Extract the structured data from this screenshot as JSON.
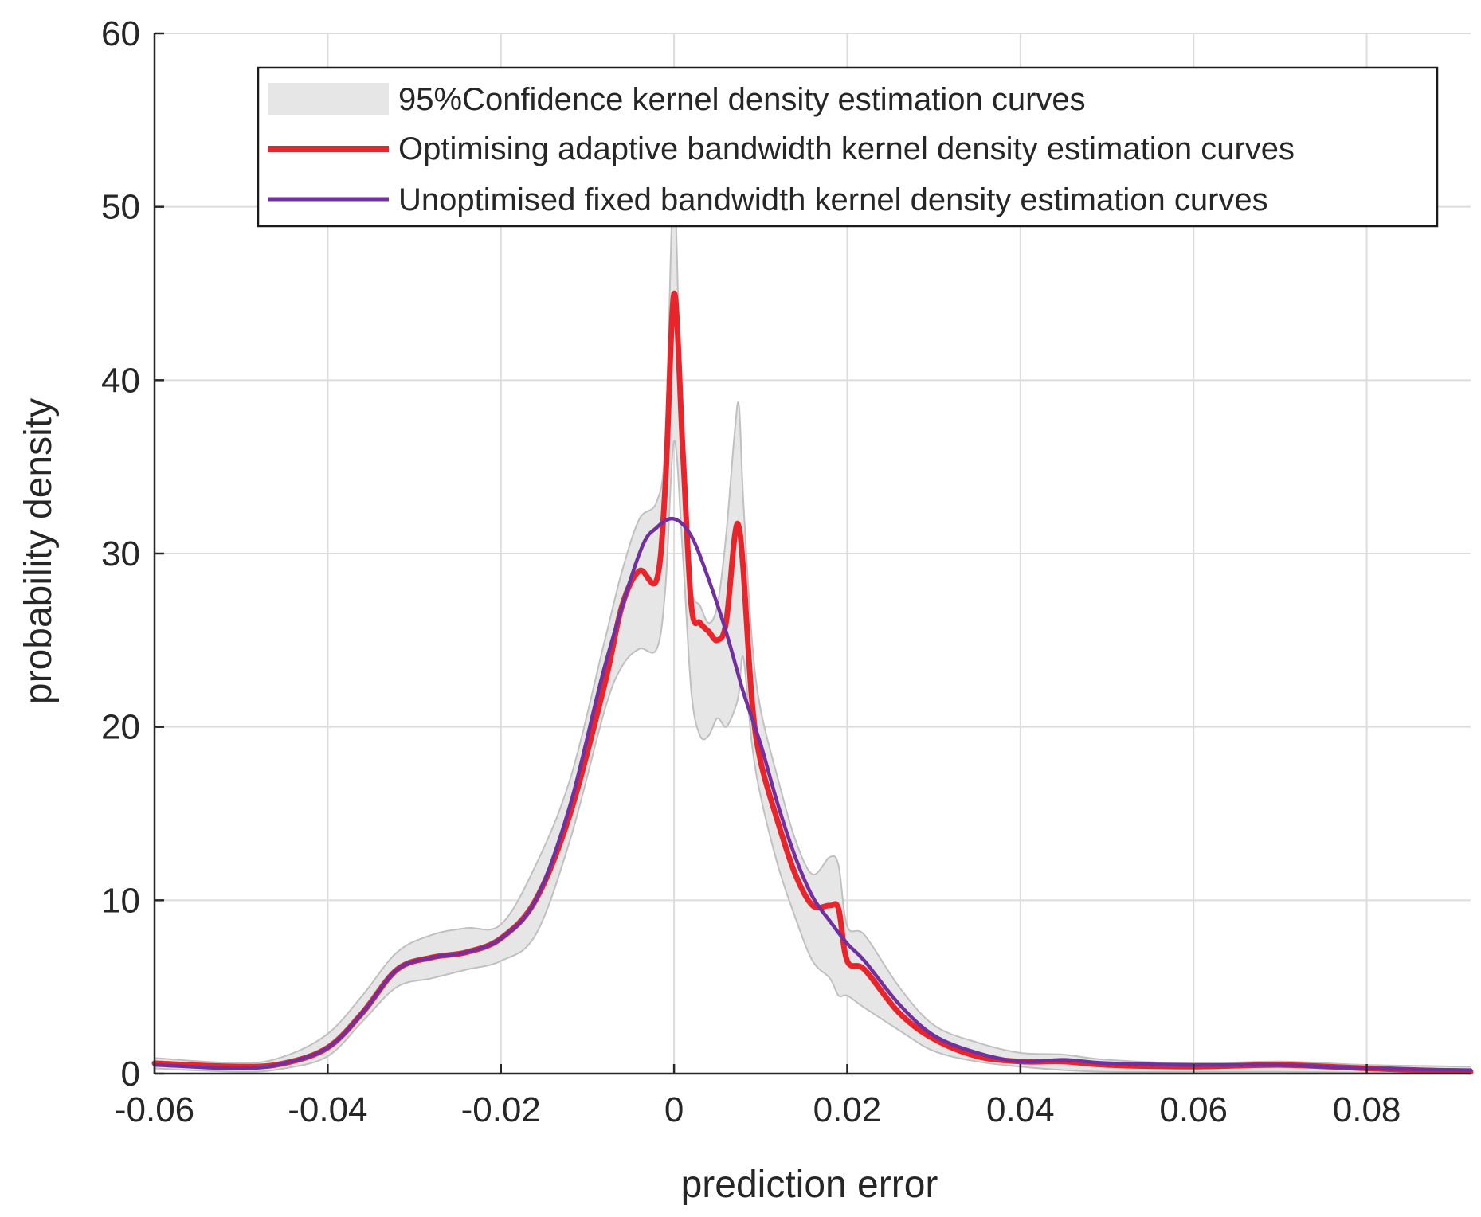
{
  "chart_data": {
    "type": "line",
    "title": "",
    "xlabel": "prediction error",
    "ylabel": "probability density",
    "xlim": [
      -0.06,
      0.092
    ],
    "ylim": [
      0,
      60
    ],
    "xticks": [
      -0.06,
      -0.04,
      -0.02,
      0,
      0.02,
      0.04,
      0.06,
      0.08
    ],
    "xtick_labels": [
      "-0.06",
      "-0.04",
      "-0.02",
      "0",
      "0.02",
      "0.04",
      "0.06",
      "0.08"
    ],
    "yticks": [
      0,
      10,
      20,
      30,
      40,
      50,
      60
    ],
    "ytick_labels": [
      "0",
      "10",
      "20",
      "30",
      "40",
      "50",
      "60"
    ],
    "grid": true,
    "legend": {
      "placement": "top-right",
      "entries": [
        "95%Confidence kernel density estimation curves",
        "Optimising adaptive bandwidth kernel density estimation curves",
        "Unoptimised fixed bandwidth kernel density estimation curves"
      ]
    },
    "band": {
      "name": "95%Confidence kernel density estimation curves",
      "color": "#e6e6e6",
      "edge_color": "#c0c0c0",
      "x": [
        -0.06,
        -0.05,
        -0.045,
        -0.04,
        -0.036,
        -0.032,
        -0.028,
        -0.024,
        -0.02,
        -0.016,
        -0.012,
        -0.008,
        -0.006,
        -0.004,
        -0.002,
        -0.001,
        0,
        0.001,
        0.002,
        0.003,
        0.004,
        0.005,
        0.006,
        0.007,
        0.0075,
        0.008,
        0.009,
        0.01,
        0.012,
        0.014,
        0.016,
        0.018,
        0.019,
        0.02,
        0.022,
        0.026,
        0.03,
        0.035,
        0.04,
        0.045,
        0.05,
        0.06,
        0.07,
        0.08,
        0.092
      ],
      "upper": [
        0.9,
        0.6,
        1.0,
        2.3,
        4.5,
        7.0,
        8.0,
        8.4,
        8.6,
        12.0,
        17.0,
        25.0,
        29.0,
        32.0,
        33.0,
        36.5,
        51.0,
        34.0,
        28.0,
        27.0,
        26.0,
        27.0,
        31.0,
        37.0,
        38.5,
        33.0,
        25.0,
        21.0,
        17.0,
        13.5,
        11.5,
        12.5,
        12.0,
        8.5,
        8.0,
        5.0,
        2.8,
        1.8,
        1.2,
        1.1,
        0.8,
        0.6,
        0.7,
        0.5,
        0.4
      ],
      "lower": [
        0.3,
        0.1,
        0.3,
        1.0,
        3.0,
        5.0,
        5.5,
        6.0,
        6.5,
        8.0,
        13.5,
        21.0,
        23.5,
        24.5,
        24.5,
        28.0,
        36.5,
        30.0,
        22.0,
        19.5,
        19.5,
        20.5,
        20.0,
        21.0,
        22.0,
        24.0,
        19.0,
        16.0,
        12.0,
        9.0,
        6.5,
        5.5,
        4.5,
        4.5,
        3.8,
        2.5,
        1.3,
        0.7,
        0.4,
        0.2,
        0.1,
        0.1,
        0.1,
        0.05,
        0.0
      ]
    },
    "series": [
      {
        "name": "Optimising adaptive bandwidth kernel density estimation curves",
        "color": "#e8252b",
        "x": [
          -0.06,
          -0.05,
          -0.045,
          -0.04,
          -0.036,
          -0.032,
          -0.028,
          -0.024,
          -0.02,
          -0.016,
          -0.012,
          -0.008,
          -0.006,
          -0.004,
          -0.002,
          -0.001,
          0,
          0.001,
          0.002,
          0.003,
          0.004,
          0.005,
          0.006,
          0.007,
          0.0075,
          0.008,
          0.009,
          0.01,
          0.012,
          0.014,
          0.016,
          0.018,
          0.019,
          0.02,
          0.022,
          0.026,
          0.03,
          0.035,
          0.04,
          0.045,
          0.05,
          0.06,
          0.07,
          0.08,
          0.092
        ],
        "values": [
          0.6,
          0.4,
          0.6,
          1.5,
          3.5,
          6.0,
          6.7,
          7.0,
          7.8,
          10.0,
          15.0,
          22.5,
          27.0,
          29.0,
          28.5,
          34.0,
          45.0,
          36.0,
          27.0,
          26.0,
          25.5,
          25.0,
          26.0,
          31.0,
          31.5,
          29.0,
          21.5,
          18.0,
          14.5,
          11.5,
          9.7,
          9.7,
          9.5,
          6.5,
          6.0,
          3.5,
          2.0,
          1.0,
          0.7,
          0.7,
          0.5,
          0.4,
          0.5,
          0.3,
          0.1
        ]
      },
      {
        "name": "Unoptimised fixed bandwidth kernel density estimation curves",
        "color": "#7030a0",
        "x": [
          -0.06,
          -0.05,
          -0.045,
          -0.04,
          -0.036,
          -0.032,
          -0.028,
          -0.024,
          -0.02,
          -0.016,
          -0.012,
          -0.008,
          -0.004,
          -0.002,
          0,
          0.002,
          0.004,
          0.006,
          0.008,
          0.01,
          0.012,
          0.014,
          0.016,
          0.018,
          0.02,
          0.022,
          0.026,
          0.03,
          0.035,
          0.04,
          0.045,
          0.05,
          0.06,
          0.07,
          0.08,
          0.092
        ],
        "values": [
          0.5,
          0.3,
          0.6,
          1.5,
          3.5,
          6.0,
          6.7,
          7.0,
          7.8,
          10.0,
          15.5,
          23.5,
          30.0,
          31.5,
          32.0,
          31.0,
          28.5,
          25.5,
          22.0,
          19.0,
          15.5,
          12.5,
          10.2,
          8.8,
          7.5,
          6.5,
          4.0,
          2.2,
          1.2,
          0.7,
          0.8,
          0.6,
          0.5,
          0.5,
          0.3,
          0.2
        ]
      }
    ]
  }
}
